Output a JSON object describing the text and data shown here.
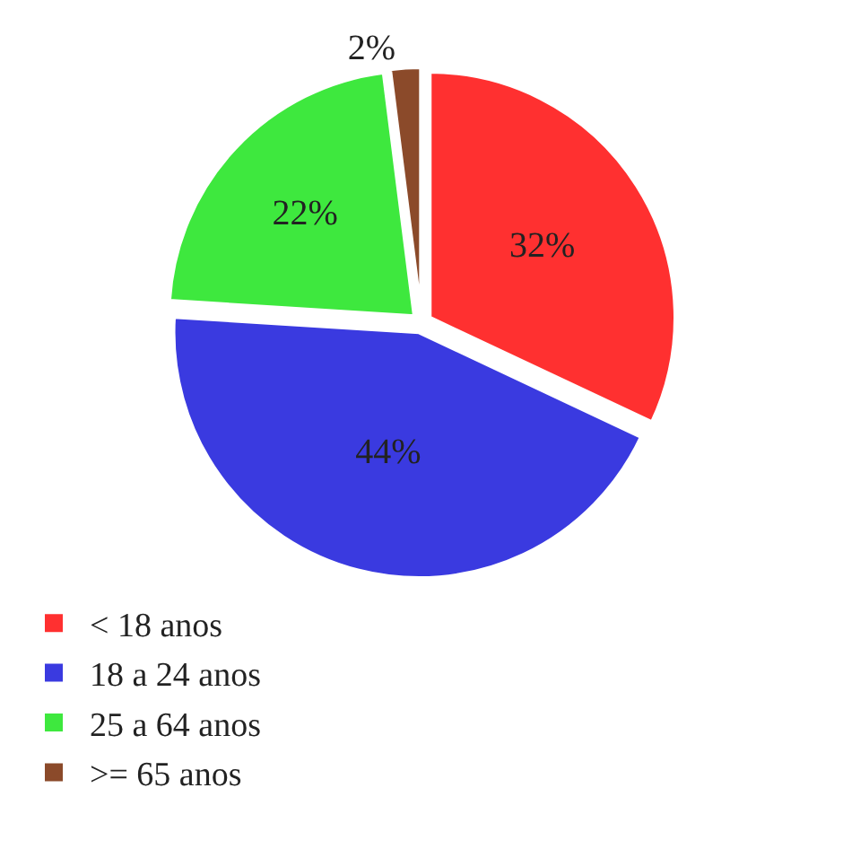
{
  "chart_data": {
    "type": "pie",
    "categories": [
      "< 18 anos",
      "18 a 24 anos",
      "25 a 64 anos",
      ">= 65 anos"
    ],
    "values": [
      32,
      44,
      22,
      2
    ],
    "colors": [
      "#ff3030",
      "#3a3ae0",
      "#3ee83e",
      "#8b4a2a"
    ],
    "value_labels": [
      "32%",
      "44%",
      "22%",
      "2%"
    ],
    "legend": "bottom"
  }
}
